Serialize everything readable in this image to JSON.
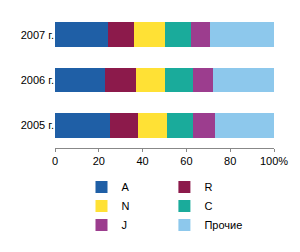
{
  "chart_data": {
    "type": "bar",
    "orientation": "horizontal",
    "stacked": true,
    "categories": [
      "2007 г.",
      "2006 г.",
      "2005 г."
    ],
    "series": [
      {
        "name": "A",
        "color": "#1f5fa6",
        "values": [
          24,
          23,
          25
        ]
      },
      {
        "name": "R",
        "color": "#8c1a4b",
        "values": [
          12,
          14,
          13
        ]
      },
      {
        "name": "N",
        "color": "#ffe135",
        "values": [
          14,
          13,
          13
        ]
      },
      {
        "name": "C",
        "color": "#1aab9b",
        "values": [
          12,
          13,
          12
        ]
      },
      {
        "name": "J",
        "color": "#9c3d8e",
        "values": [
          9,
          9,
          10
        ]
      },
      {
        "name": "Прочие",
        "color": "#8dc8ec",
        "values": [
          29,
          28,
          27
        ]
      }
    ],
    "xlim": [
      0,
      100
    ],
    "xticks": [
      0,
      20,
      40,
      60,
      80,
      {
        "value": 100,
        "label": "100%"
      }
    ],
    "grid": false,
    "legend": "bottom"
  }
}
